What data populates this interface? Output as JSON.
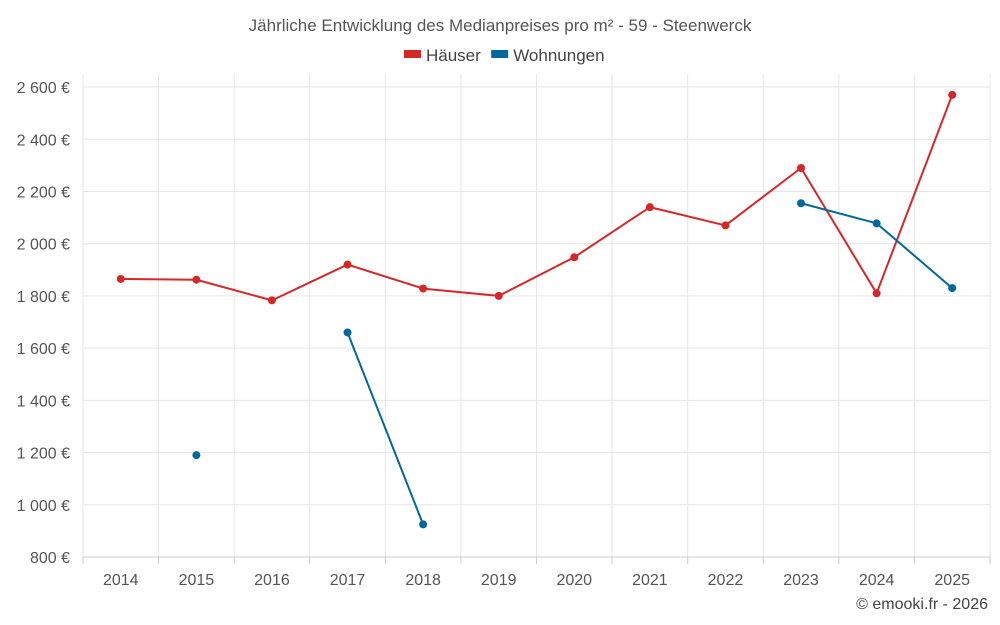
{
  "chart_data": {
    "type": "line",
    "title": "Jährliche Entwicklung des Medianpreises pro m² - 59 - Steenwerck",
    "categories": [
      "2014",
      "2015",
      "2016",
      "2017",
      "2018",
      "2019",
      "2020",
      "2021",
      "2022",
      "2023",
      "2024",
      "2025"
    ],
    "series": [
      {
        "name": "Häuser",
        "color": "#d62728",
        "values": [
          1865,
          1862,
          1783,
          1920,
          1828,
          1800,
          1948,
          2140,
          2070,
          2290,
          1810,
          2570
        ]
      },
      {
        "name": "Wohnungen",
        "color": "#00689d",
        "values": [
          null,
          1190,
          null,
          1660,
          925,
          null,
          null,
          null,
          null,
          2155,
          2078,
          1830
        ]
      }
    ],
    "ylim": [
      800,
      2650
    ],
    "yticks": [
      800,
      1000,
      1200,
      1400,
      1600,
      1800,
      2000,
      2200,
      2400,
      2600
    ],
    "ytick_labels": [
      "800 €",
      "1 000 €",
      "1 200 €",
      "1 400 €",
      "1 600 €",
      "1 800 €",
      "2 000 €",
      "2 200 €",
      "2 400 €",
      "2 600 €"
    ],
    "xlabel": "",
    "ylabel": "",
    "legend_position": "top-center",
    "grid": true
  },
  "credit": "© emooki.fr - 2026"
}
